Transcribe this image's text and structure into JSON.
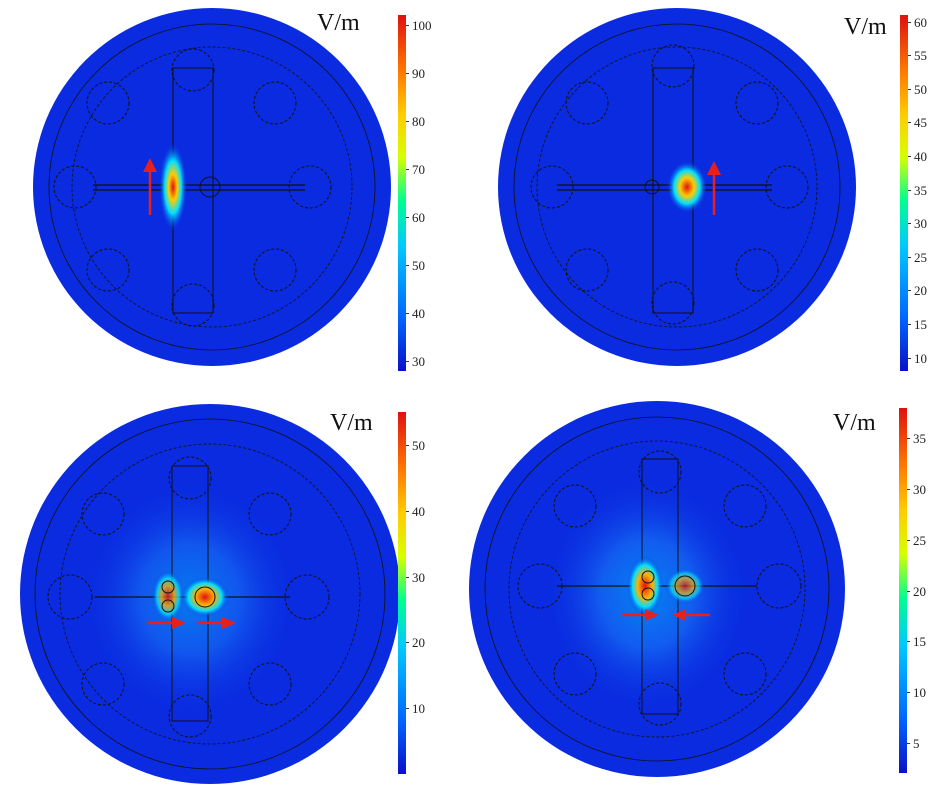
{
  "panels": [
    {
      "id": "tl",
      "unit": "V/m",
      "ticks": [
        "100",
        "90",
        "80",
        "70",
        "60",
        "50",
        "40",
        "30"
      ],
      "tick_values": [
        100,
        90,
        80,
        70,
        60,
        50,
        40,
        30
      ],
      "range": [
        28,
        102
      ]
    },
    {
      "id": "tr",
      "unit": "V/m",
      "ticks": [
        "60",
        "55",
        "50",
        "45",
        "40",
        "35",
        "30",
        "25",
        "20",
        "15",
        "10"
      ],
      "tick_values": [
        60,
        55,
        50,
        45,
        40,
        35,
        30,
        25,
        20,
        15,
        10
      ],
      "range": [
        8,
        61
      ]
    },
    {
      "id": "bl",
      "unit": "V/m",
      "ticks": [
        "50",
        "40",
        "30",
        "20",
        "10"
      ],
      "tick_values": [
        50,
        40,
        30,
        20,
        10
      ],
      "range": [
        0,
        55
      ]
    },
    {
      "id": "br",
      "unit": "V/m",
      "ticks": [
        "35",
        "30",
        "25",
        "20",
        "15",
        "10",
        "5"
      ],
      "tick_values": [
        35,
        30,
        25,
        20,
        15,
        10,
        5
      ],
      "range": [
        2,
        38
      ]
    }
  ],
  "colors": {
    "field_low": "#0a2be0",
    "arrow": "#e8201c",
    "hot": "#e01010"
  }
}
